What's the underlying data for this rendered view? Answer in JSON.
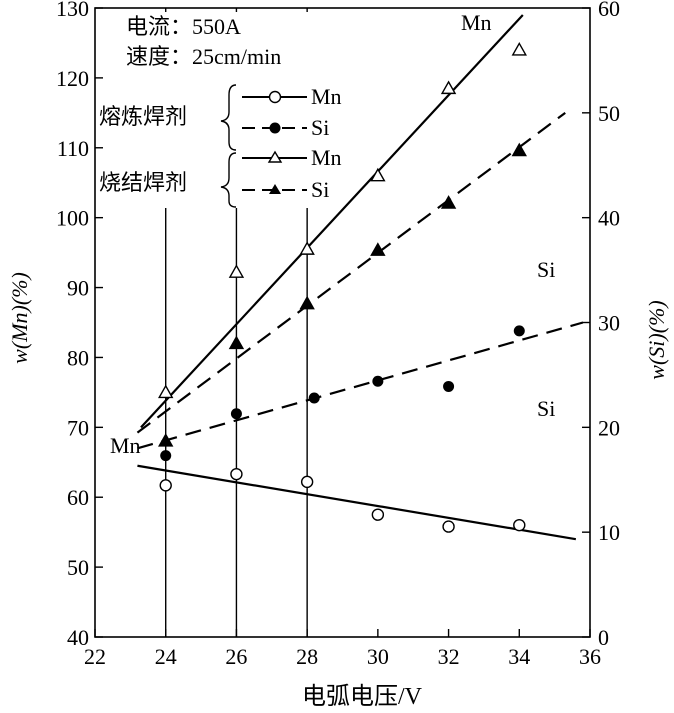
{
  "chart_data": {
    "type": "scatter",
    "x_axis": {
      "label": "电弧电压/V",
      "min": 22,
      "max": 36,
      "ticks": [
        "22",
        "24",
        "26",
        "28",
        "30",
        "32",
        "34",
        "36"
      ]
    },
    "y_left": {
      "label": "w(Mn)(%)",
      "min": 40,
      "max": 130,
      "ticks": [
        "40",
        "50",
        "60",
        "70",
        "80",
        "90",
        "100",
        "110",
        "120",
        "130"
      ]
    },
    "y_right": {
      "label": "w(Si)(%)",
      "min": 0,
      "max": 60,
      "ticks": [
        "0",
        "10",
        "20",
        "30",
        "40",
        "50",
        "60"
      ]
    },
    "grid": "vertical lines at x = 24, 26, 28",
    "conditions": [
      "电流：550A",
      "速度：25cm/min"
    ],
    "legend": {
      "groups": [
        {
          "label": "熔炼焊剂",
          "entries": [
            "Mn",
            "Si"
          ]
        },
        {
          "label": "烧结焊剂",
          "entries": [
            "Mn",
            "Si"
          ]
        }
      ]
    },
    "series": [
      {
        "name": "熔炼焊剂 Mn",
        "axis": "left",
        "marker": "open-circle",
        "line": "solid",
        "points": [
          [
            24,
            61.7
          ],
          [
            26,
            63.3
          ],
          [
            28,
            62.2
          ],
          [
            30,
            57.5
          ],
          [
            32,
            55.8
          ],
          [
            34,
            56.0
          ]
        ],
        "fit": [
          [
            23.2,
            64.5
          ],
          [
            35.6,
            54.0
          ]
        ]
      },
      {
        "name": "熔炼焊剂 Si",
        "axis": "right",
        "marker": "filled-circle",
        "line": "dashed",
        "points": [
          [
            24,
            17.3
          ],
          [
            26,
            21.3
          ],
          [
            28.2,
            22.8
          ],
          [
            30,
            24.4
          ],
          [
            32,
            23.9
          ],
          [
            34,
            29.2
          ]
        ],
        "fit": [
          [
            23.2,
            18.0
          ],
          [
            35.8,
            30.0
          ]
        ]
      },
      {
        "name": "烧结焊剂 Mn",
        "axis": "left",
        "marker": "open-triangle",
        "line": "solid",
        "points": [
          [
            24,
            75.0
          ],
          [
            26,
            92.2
          ],
          [
            28,
            95.5
          ],
          [
            30,
            106.0
          ],
          [
            32,
            118.5
          ],
          [
            34,
            124.0
          ]
        ],
        "fit": [
          [
            23.3,
            70.0
          ],
          [
            34.1,
            129.0
          ]
        ]
      },
      {
        "name": "烧结焊剂 Si",
        "axis": "right",
        "marker": "filled-triangle",
        "line": "dashed",
        "points": [
          [
            24,
            18.7
          ],
          [
            26,
            28.0
          ],
          [
            28,
            31.8
          ],
          [
            30,
            36.9
          ],
          [
            32,
            41.4
          ],
          [
            34,
            46.4
          ]
        ],
        "fit": [
          [
            23.2,
            19.5
          ],
          [
            35.3,
            50.0
          ]
        ]
      }
    ],
    "annotations": [
      {
        "text": "Mn",
        "near": "烧结焊剂 Mn line end"
      },
      {
        "text": "Si",
        "near": "烧结焊剂 Si line end"
      },
      {
        "text": "Si",
        "near": "熔炼焊剂 Si line end"
      },
      {
        "text": "Mn",
        "near": "熔炼焊剂 Mn line start"
      }
    ]
  }
}
